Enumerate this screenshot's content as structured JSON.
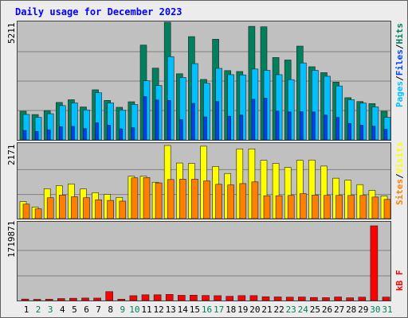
{
  "title": "Daily usage for December 2023",
  "colors": {
    "hits": "#00805c",
    "files": "#0040ff",
    "pages": "#00c0ff",
    "visits": "#ffff00",
    "sites": "#ff8000",
    "kbytes": "#ff0000",
    "weekend_label": "#00805c",
    "weekday_label": "#000000",
    "title": "#0000ff",
    "panel_bg": "#c0c0c0",
    "grid": "#808080"
  },
  "legend": {
    "top": [
      "Pages",
      "/",
      "Files",
      "/",
      "Hits"
    ],
    "mid": [
      "Sites",
      "/",
      "Visits"
    ],
    "bot": [
      "kB F"
    ]
  },
  "chart_data": {
    "type": "bar",
    "title": "Daily usage for December 2023",
    "categories": [
      "1",
      "2",
      "3",
      "4",
      "5",
      "6",
      "7",
      "8",
      "9",
      "10",
      "11",
      "12",
      "13",
      "14",
      "15",
      "16",
      "17",
      "18",
      "19",
      "20",
      "21",
      "22",
      "23",
      "24",
      "25",
      "26",
      "27",
      "28",
      "29",
      "30",
      "31"
    ],
    "weekend_days": [
      "2",
      "3",
      "9",
      "10",
      "16",
      "17",
      "23",
      "24",
      "30",
      "31"
    ],
    "panels": [
      {
        "ymax_label": "5211",
        "ylim": [
          0,
          5211
        ],
        "series": [
          {
            "name": "Hits",
            "values": [
              1270,
              1125,
              1300,
              1660,
              1780,
              1460,
              2220,
              1750,
              1445,
              1690,
              4200,
              3180,
              5211,
              2930,
              4575,
              2680,
              4460,
              3070,
              3030,
              5030,
              5010,
              3650,
              3540,
              4155,
              3240,
              2980,
              2560,
              1870,
              1700,
              1610,
              1270
            ]
          },
          {
            "name": "Files",
            "values": [
              420,
              380,
              450,
              590,
              600,
              500,
              760,
              650,
              490,
              540,
              1920,
              1770,
              1750,
              900,
              1620,
              1020,
              1700,
              1050,
              1100,
              1800,
              1850,
              1280,
              1240,
              1250,
              1240,
              1100,
              1000,
              730,
              650,
              610,
              470
            ]
          },
          {
            "name": "Pages",
            "values": [
              1130,
              1000,
              1160,
              1520,
              1640,
              1330,
              2090,
              1640,
              1320,
              1570,
              2620,
              2410,
              3690,
              2770,
              3380,
              2510,
              3170,
              2890,
              2880,
              3140,
              3080,
              2890,
              2670,
              3410,
              3080,
              2820,
              2390,
              1780,
              1630,
              1460,
              1000
            ]
          }
        ]
      },
      {
        "ymax_label": "2171",
        "ylim": [
          0,
          2171
        ],
        "series": [
          {
            "name": "Visits",
            "values": [
              505,
              345,
              890,
              980,
              1030,
              880,
              770,
              720,
              630,
              1260,
              1260,
              1080,
              2171,
              1650,
              1640,
              2150,
              1550,
              1340,
              2070,
              2070,
              1730,
              1640,
              1520,
              1730,
              1740,
              1560,
              1200,
              1140,
              1010,
              840,
              670
            ]
          },
          {
            "name": "Sites",
            "values": [
              430,
              290,
              620,
              700,
              650,
              620,
              560,
              540,
              520,
              1210,
              1220,
              1060,
              1160,
              1170,
              1170,
              1120,
              1020,
              1000,
              1040,
              1090,
              680,
              680,
              690,
              740,
              700,
              690,
              690,
              690,
              690,
              640,
              570
            ]
          }
        ]
      },
      {
        "ymax_label": "1719871",
        "ylim": [
          0,
          1719871
        ],
        "series": [
          {
            "name": "KBytes",
            "values": [
              33000,
              27000,
              30000,
              45000,
              52000,
              57000,
              56000,
              205000,
              31000,
              111000,
              132000,
              132000,
              140000,
              120000,
              123000,
              116000,
              111000,
              98000,
              113000,
              113000,
              87000,
              83000,
              78000,
              81000,
              70000,
              66000,
              82000,
              63000,
              78000,
              1719871,
              79000
            ]
          }
        ]
      }
    ]
  }
}
